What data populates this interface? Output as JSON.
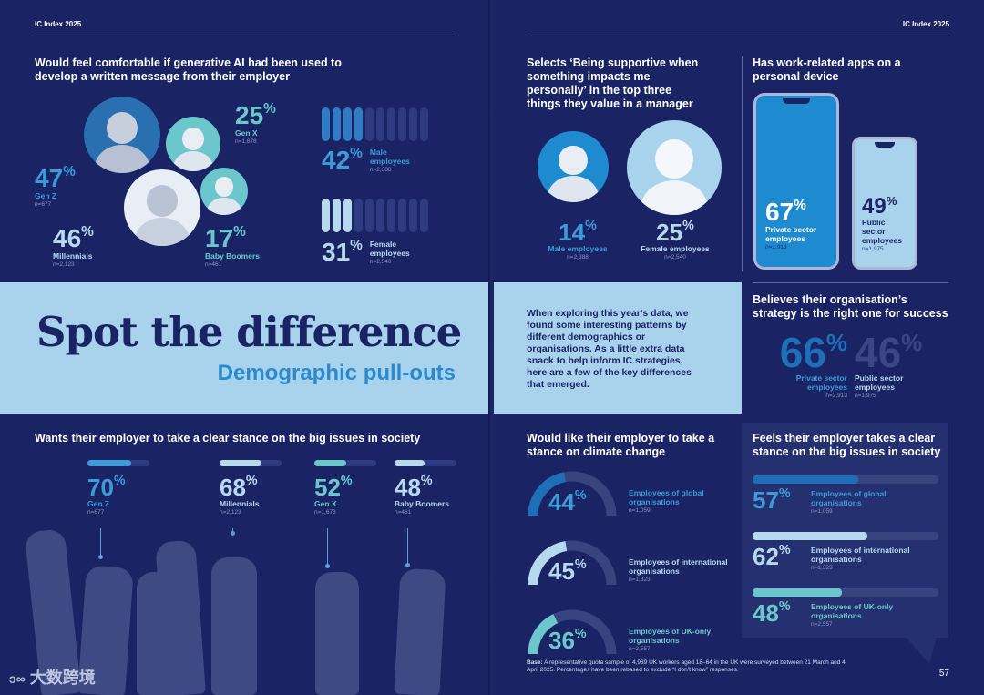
{
  "header": {
    "left": "IC Index 2025",
    "right": "IC Index 2025"
  },
  "comfort_ai": {
    "title": "Would feel comfortable if generative AI had been used to develop a written message from their employer",
    "generations": [
      {
        "value": "25",
        "label": "Gen X",
        "n": "n=1,678"
      },
      {
        "value": "47",
        "label": "Gen Z",
        "n": "n=677"
      },
      {
        "value": "46",
        "label": "Millennials",
        "n": "n=2,123"
      },
      {
        "value": "17",
        "label": "Baby Boomers",
        "n": "n=461"
      }
    ],
    "gender": [
      {
        "value": "42",
        "label": "Male employees",
        "n": "n=2,388",
        "fraction": 0.42
      },
      {
        "value": "31",
        "label": "Female employees",
        "n": "n=2,540",
        "fraction": 0.31
      }
    ],
    "pct": "%"
  },
  "manager": {
    "title": "Selects ‘Being supportive when something impacts me personally’ in the top three things they value in a manager",
    "items": [
      {
        "value": "14",
        "label": "Male employees",
        "n": "n=2,388"
      },
      {
        "value": "25",
        "label": "Female employees",
        "n": "n=2,540"
      }
    ]
  },
  "apps": {
    "title": "Has work-related apps on a personal device",
    "items": [
      {
        "value": "67",
        "label": "Private sector employees",
        "n": "n=2,913"
      },
      {
        "value": "49",
        "label": "Public sector employees",
        "n": "n=1,975"
      }
    ]
  },
  "band": {
    "headline": "Spot the difference",
    "subhead": "Demographic pull-outs",
    "intro": "When exploring this year's data, we found some interesting patterns by different demographics or organisations. As a little extra data snack to help inform IC strategies, here are a few of the key differences that emerged."
  },
  "strategy": {
    "title": "Believes their organisation’s strategy is the right one for success",
    "items": [
      {
        "value": "66",
        "label": "Private sector employees",
        "n": "n=2,913"
      },
      {
        "value": "46",
        "label": "Public sector employees",
        "n": "n=1,975"
      }
    ]
  },
  "stance": {
    "title": "Wants their employer to take a clear stance on the big issues in society",
    "items": [
      {
        "value": "70",
        "label": "Gen Z",
        "n": "n=677",
        "fraction": 0.7
      },
      {
        "value": "68",
        "label": "Millennials",
        "n": "n=2,123",
        "fraction": 0.68
      },
      {
        "value": "52",
        "label": "Gen X",
        "n": "n=1,678",
        "fraction": 0.52
      },
      {
        "value": "48",
        "label": "Baby Boomers",
        "n": "n=461",
        "fraction": 0.48
      }
    ]
  },
  "climate": {
    "title": "Would like their employer to take a stance on climate change",
    "items": [
      {
        "value": "44",
        "label": "Employees of global organisations",
        "n": "n=1,059",
        "fraction": 0.44
      },
      {
        "value": "45",
        "label": "Employees of international organisations",
        "n": "n=1,323",
        "fraction": 0.45
      },
      {
        "value": "36",
        "label": "Employees of UK-only organisations",
        "n": "n=2,557",
        "fraction": 0.36
      }
    ]
  },
  "feels_stance": {
    "title": "Feels their employer takes a clear stance on the big issues in society",
    "items": [
      {
        "value": "57",
        "label": "Employees of global organisations",
        "n": "n=1,059",
        "fraction": 0.57
      },
      {
        "value": "62",
        "label": "Employees of international organisations",
        "n": "n=1,323",
        "fraction": 0.62
      },
      {
        "value": "48",
        "label": "Employees of UK-only organisations",
        "n": "n=2,557",
        "fraction": 0.48
      }
    ]
  },
  "footer": {
    "base_label": "Base:",
    "base_text": "A representative quota sample of 4,939 UK workers aged 18–64 in the UK were surveyed between 21 March and 4 April 2025. Percentages have been rebased to exclude “I don’t know” responses.",
    "page_number": "57",
    "watermark": "大数跨境"
  },
  "colors": {
    "navy": "#1a2465",
    "light_blue": "#a9d3ec",
    "sky": "#3d9bd8",
    "teal": "#6bc7cc",
    "pale": "#b7d9ee"
  }
}
